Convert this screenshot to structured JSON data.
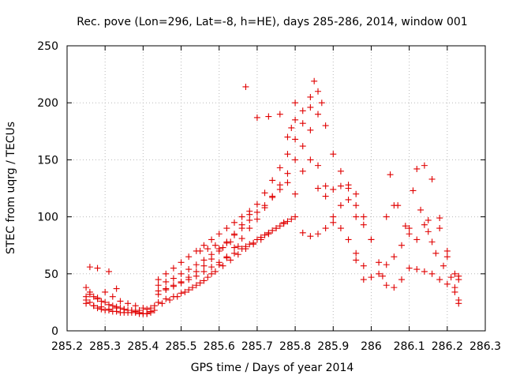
{
  "chart_data": {
    "type": "scatter",
    "title": "Rec. pove (Lon=296, Lat=-8, h=HE), days 285-286, 2014, window 001",
    "xlabel": "GPS time / Days of year 2014",
    "ylabel": "STEC from uqrg / TECUs",
    "xlim": [
      285.2,
      286.3
    ],
    "ylim": [
      0,
      250
    ],
    "xticks": [
      285.2,
      285.3,
      285.4,
      285.5,
      285.6,
      285.7,
      285.8,
      285.9,
      286.0,
      286.1,
      286.2,
      286.3
    ],
    "xtick_labels": [
      "285.2",
      "285.3",
      "285.4",
      "285.5",
      "285.6",
      "285.7",
      "285.8",
      "285.9",
      "286",
      "286.1",
      "286.2",
      "286.3"
    ],
    "yticks": [
      0,
      50,
      100,
      150,
      200,
      250
    ],
    "ytick_labels": [
      "0",
      "50",
      "100",
      "150",
      "200",
      "250"
    ],
    "grid": true,
    "marker": "+",
    "color": "#e00000",
    "series": [
      {
        "name": "STEC",
        "x": [
          285.25,
          285.26,
          285.27,
          285.28,
          285.29,
          285.3,
          285.31,
          285.32,
          285.33,
          285.34,
          285.35,
          285.36,
          285.37,
          285.38,
          285.39,
          285.4,
          285.41,
          285.42,
          285.43,
          285.25,
          285.26,
          285.27,
          285.28,
          285.29,
          285.3,
          285.31,
          285.32,
          285.33,
          285.34,
          285.35,
          285.36,
          285.37,
          285.38,
          285.39,
          285.4,
          285.41,
          285.42,
          285.25,
          285.27,
          285.29,
          285.31,
          285.33,
          285.35,
          285.37,
          285.39,
          285.41,
          285.43,
          285.25,
          285.26,
          285.28,
          285.3,
          285.32,
          285.34,
          285.36,
          285.38,
          285.4,
          285.26,
          285.28,
          285.31,
          285.33,
          285.44,
          285.46,
          285.48,
          285.5,
          285.52,
          285.54,
          285.56,
          285.58,
          285.6,
          285.62,
          285.64,
          285.66,
          285.68,
          285.7,
          285.72,
          285.74,
          285.76,
          285.78,
          285.8,
          285.82,
          285.84,
          285.86,
          285.44,
          285.46,
          285.48,
          285.5,
          285.52,
          285.54,
          285.56,
          285.58,
          285.6,
          285.62,
          285.64,
          285.66,
          285.68,
          285.7,
          285.72,
          285.74,
          285.76,
          285.78,
          285.8,
          285.82,
          285.84,
          285.44,
          285.46,
          285.48,
          285.5,
          285.52,
          285.54,
          285.56,
          285.58,
          285.6,
          285.62,
          285.64,
          285.66,
          285.68,
          285.7,
          285.72,
          285.74,
          285.76,
          285.78,
          285.44,
          285.46,
          285.48,
          285.5,
          285.52,
          285.54,
          285.56,
          285.58,
          285.6,
          285.62,
          285.64,
          285.66,
          285.68,
          285.7,
          285.72,
          285.74,
          285.76,
          285.78,
          285.8,
          285.42,
          285.45,
          285.47,
          285.49,
          285.51,
          285.53,
          285.55,
          285.57,
          285.59,
          285.61,
          285.63,
          285.65,
          285.67,
          285.69,
          285.71,
          285.73,
          285.75,
          285.77,
          285.79,
          285.44,
          285.46,
          285.48,
          285.5,
          285.52,
          285.54,
          285.56,
          285.58,
          285.6,
          285.62,
          285.64,
          285.66,
          285.68,
          285.55,
          285.57,
          285.59,
          285.61,
          285.63,
          285.65,
          285.67,
          285.69,
          285.71,
          285.73,
          285.75,
          285.77,
          285.78,
          285.8,
          285.82,
          285.84,
          285.86,
          285.88,
          285.9,
          285.92,
          285.94,
          285.96,
          285.8,
          285.82,
          285.84,
          285.86,
          285.88,
          285.9,
          285.92,
          285.94,
          285.96,
          285.98,
          285.82,
          285.84,
          285.86,
          285.88,
          285.9,
          285.92,
          285.94,
          285.96,
          285.98,
          286.0,
          285.67,
          285.7,
          285.73,
          285.76,
          285.79,
          285.8,
          285.85,
          285.87,
          285.86,
          285.88,
          285.9,
          285.92,
          285.94,
          285.96,
          285.98,
          286.0,
          286.02,
          286.04,
          286.06,
          286.08,
          286.1,
          286.12,
          286.14,
          286.16,
          286.18,
          286.2,
          286.22,
          286.23,
          285.96,
          285.98,
          286.0,
          286.02,
          286.04,
          286.06,
          286.08,
          286.1,
          286.12,
          286.14,
          286.16,
          286.18,
          286.2,
          286.22,
          286.23,
          286.03,
          286.05,
          286.07,
          286.09,
          286.11,
          286.13,
          286.15,
          286.17,
          286.19,
          286.21,
          286.23,
          286.04,
          286.06,
          286.1,
          286.12,
          286.14,
          286.15,
          286.16,
          286.18,
          286.2,
          286.22,
          286.23
        ],
        "y": [
          30,
          25,
          22,
          20,
          19,
          18,
          18,
          17,
          17,
          16,
          16,
          16,
          16,
          16,
          15,
          15,
          15,
          16,
          18,
          38,
          34,
          30,
          28,
          26,
          25,
          23,
          22,
          21,
          20,
          19,
          18,
          18,
          17,
          16,
          15,
          15,
          17,
          24,
          22,
          21,
          19,
          20,
          19,
          18,
          18,
          19,
          22,
          27,
          32,
          29,
          34,
          30,
          26,
          24,
          22,
          20,
          56,
          55,
          52,
          37,
          25,
          28,
          30,
          33,
          36,
          40,
          44,
          50,
          58,
          65,
          73,
          81,
          90,
          98,
          108,
          118,
          128,
          138,
          150,
          162,
          176,
          190,
          32,
          36,
          39,
          43,
          47,
          52,
          57,
          63,
          70,
          77,
          85,
          93,
          102,
          111,
          121,
          132,
          143,
          155,
          168,
          182,
          196,
          40,
          43,
          46,
          50,
          54,
          58,
          62,
          67,
          72,
          78,
          84,
          90,
          97,
          104,
          110,
          117,
          124,
          130,
          35,
          37,
          40,
          42,
          45,
          48,
          52,
          56,
          60,
          64,
          68,
          72,
          76,
          80,
          84,
          88,
          92,
          96,
          100,
          20,
          24,
          27,
          30,
          34,
          38,
          42,
          47,
          52,
          57,
          62,
          67,
          72,
          77,
          82,
          86,
          90,
          94,
          98,
          45,
          50,
          55,
          60,
          65,
          70,
          75,
          80,
          85,
          90,
          95,
          100,
          105,
          70,
          72,
          75,
          73,
          78,
          74,
          74,
          76,
          80,
          85,
          90,
          95,
          170,
          185,
          193,
          205,
          210,
          180,
          155,
          140,
          128,
          110,
          120,
          140,
          150,
          125,
          118,
          100,
          90,
          80,
          68,
          57,
          86,
          83,
          85,
          90,
          95,
          110,
          125,
          120,
          100,
          80,
          214,
          187,
          188,
          190,
          178,
          200,
          219,
          200,
          145,
          127,
          124,
          127,
          115,
          100,
          93,
          80,
          60,
          58,
          65,
          75,
          90,
          142,
          145,
          133,
          90,
          65,
          50,
          48,
          62,
          45,
          47,
          50,
          40,
          38,
          45,
          55,
          54,
          52,
          50,
          45,
          41,
          38,
          27,
          48,
          137,
          110,
          92,
          123,
          106,
          87,
          68,
          57,
          47,
          45,
          100,
          110,
          85,
          80,
          93,
          97,
          78,
          99,
          70,
          34,
          24
        ]
      }
    ]
  }
}
